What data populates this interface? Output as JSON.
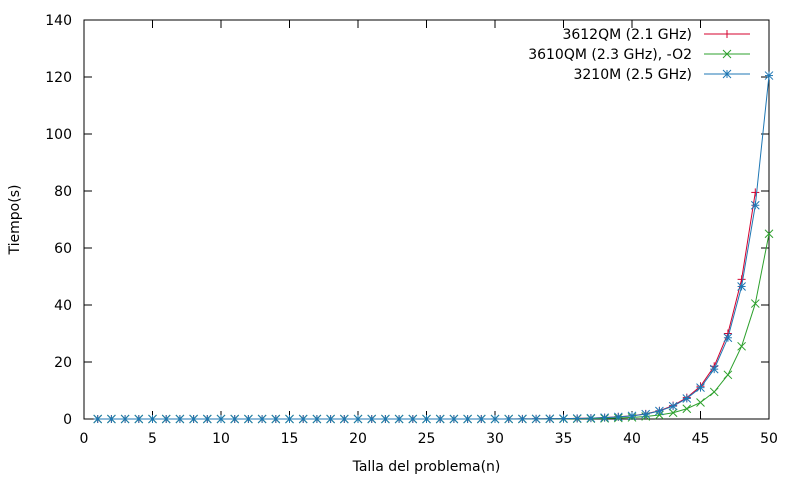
{
  "chart_data": {
    "type": "line",
    "title": "",
    "xlabel": "Talla del problema(n)",
    "ylabel": "Tiempo(s)",
    "xlim": [
      0,
      50
    ],
    "ylim": [
      0,
      140
    ],
    "xticks": [
      0,
      5,
      10,
      15,
      20,
      25,
      30,
      35,
      40,
      45,
      50
    ],
    "yticks": [
      0,
      20,
      40,
      60,
      80,
      100,
      120,
      140
    ],
    "grid": false,
    "legend_position": "top-right",
    "series": [
      {
        "name": "3612QM (2.1 GHz)",
        "color": "#d4002e",
        "marker": "plus",
        "x": [
          1,
          2,
          3,
          4,
          5,
          6,
          7,
          8,
          9,
          10,
          11,
          12,
          13,
          14,
          15,
          16,
          17,
          18,
          19,
          20,
          21,
          22,
          23,
          24,
          25,
          26,
          27,
          28,
          29,
          30,
          31,
          32,
          33,
          34,
          35,
          36,
          37,
          38,
          39,
          40,
          41,
          42,
          43,
          44,
          45,
          46,
          47,
          48,
          49
        ],
        "y": [
          0,
          0,
          0,
          0,
          0,
          0,
          0,
          0,
          0,
          0,
          0,
          0,
          0,
          0,
          0,
          0,
          0,
          0,
          0,
          0,
          0,
          0,
          0,
          0,
          0,
          0,
          0,
          0,
          0.01,
          0.01,
          0.02,
          0.03,
          0.05,
          0.08,
          0.12,
          0.2,
          0.32,
          0.5,
          0.8,
          1.1,
          1.8,
          2.9,
          4.7,
          7.5,
          11.5,
          18.5,
          30,
          49,
          79.5
        ]
      },
      {
        "name": "3610QM (2.3 GHz), -O2",
        "color": "#2ca02c",
        "marker": "cross",
        "x": [
          1,
          2,
          3,
          4,
          5,
          6,
          7,
          8,
          9,
          10,
          11,
          12,
          13,
          14,
          15,
          16,
          17,
          18,
          19,
          20,
          21,
          22,
          23,
          24,
          25,
          26,
          27,
          28,
          29,
          30,
          31,
          32,
          33,
          34,
          35,
          36,
          37,
          38,
          39,
          40,
          41,
          42,
          43,
          44,
          45,
          46,
          47,
          48,
          49,
          50
        ],
        "y": [
          0,
          0,
          0,
          0,
          0,
          0,
          0,
          0,
          0,
          0,
          0,
          0,
          0,
          0,
          0,
          0,
          0,
          0,
          0,
          0,
          0,
          0,
          0,
          0,
          0,
          0,
          0,
          0,
          0,
          0,
          0,
          0.01,
          0.02,
          0.03,
          0.05,
          0.08,
          0.13,
          0.2,
          0.35,
          0.55,
          0.9,
          1.4,
          2.2,
          3.6,
          5.8,
          9.5,
          15.5,
          25.5,
          40.5,
          65
        ]
      },
      {
        "name": "3210M (2.5 GHz)",
        "color": "#1f77b4",
        "marker": "star",
        "x": [
          1,
          2,
          3,
          4,
          5,
          6,
          7,
          8,
          9,
          10,
          11,
          12,
          13,
          14,
          15,
          16,
          17,
          18,
          19,
          20,
          21,
          22,
          23,
          24,
          25,
          26,
          27,
          28,
          29,
          30,
          31,
          32,
          33,
          34,
          35,
          36,
          37,
          38,
          39,
          40,
          41,
          42,
          43,
          44,
          45,
          46,
          47,
          48,
          49,
          50
        ],
        "y": [
          0,
          0,
          0,
          0,
          0,
          0,
          0,
          0,
          0,
          0,
          0,
          0,
          0,
          0,
          0,
          0,
          0,
          0,
          0,
          0,
          0,
          0,
          0,
          0,
          0,
          0,
          0,
          0,
          0.01,
          0.01,
          0.02,
          0.03,
          0.05,
          0.08,
          0.12,
          0.19,
          0.3,
          0.48,
          0.75,
          1.1,
          1.7,
          2.8,
          4.5,
          7.2,
          11,
          17.5,
          28.5,
          46.5,
          75,
          120.5
        ]
      }
    ]
  }
}
